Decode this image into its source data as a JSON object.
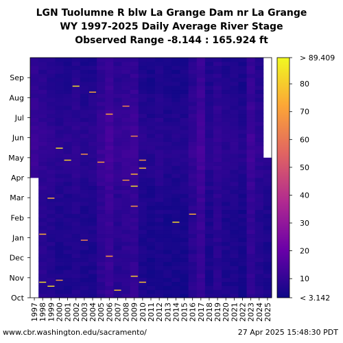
{
  "chart_data": {
    "type": "heatmap",
    "title_lines": [
      "LGN Tuolumne R blw La Grange Dam nr La Grange",
      "WY 1997-2025 Daily Average River Stage",
      "Observed Range -8.144 : 165.924 ft"
    ],
    "x_categories": [
      "1997",
      "1998",
      "1999",
      "2000",
      "2001",
      "2002",
      "2003",
      "2004",
      "2005",
      "2006",
      "2007",
      "2008",
      "2009",
      "2010",
      "2011",
      "2012",
      "2013",
      "2014",
      "2015",
      "2016",
      "2017",
      "2018",
      "2019",
      "2020",
      "2021",
      "2022",
      "2023",
      "2024",
      "2025"
    ],
    "y_month_ticks": [
      "Oct",
      "Nov",
      "Dec",
      "Jan",
      "Feb",
      "Mar",
      "Apr",
      "May",
      "Jun",
      "Jul",
      "Aug",
      "Sep"
    ],
    "colorbar": {
      "min_label": "< 3.142",
      "max_label": "> 89.409",
      "ticks": [
        "10",
        "20",
        "30",
        "40",
        "50",
        "60",
        "70",
        "80"
      ],
      "tick_values": [
        10,
        20,
        30,
        40,
        50,
        60,
        70,
        80
      ],
      "range": [
        3.142,
        89.409
      ]
    },
    "colormap_colors": [
      "#0d0887",
      "#6a00a8",
      "#b12a90",
      "#e16462",
      "#fca636",
      "#f0f921"
    ],
    "yearly_base_stage": [
      9,
      8,
      7,
      6,
      6,
      7,
      6,
      6,
      9,
      11,
      8,
      9,
      10,
      6,
      5,
      6,
      5,
      5,
      5,
      8,
      11,
      6,
      8,
      6,
      6,
      5,
      10,
      7,
      6
    ],
    "missing_data": [
      {
        "year": "1997",
        "from_month": "Oct",
        "to_month": "Mar"
      },
      {
        "year": "2025",
        "from_month": "May",
        "to_month": "Sep"
      }
    ]
  },
  "footer": {
    "left": "www.cbr.washington.edu/sacramento/",
    "right": "27 Apr 2025 15:48:30 PDT"
  }
}
